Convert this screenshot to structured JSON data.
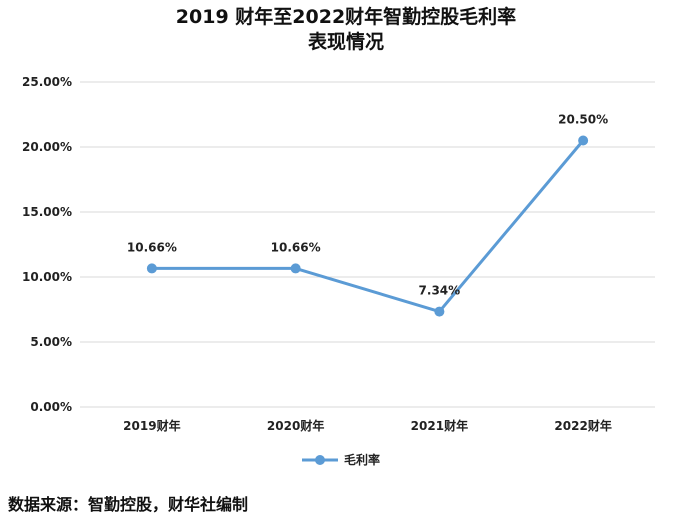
{
  "title_lines": [
    "2019 财年至2022财年智勤控股毛利率",
    "表现情况"
  ],
  "source": "数据来源：智勤控股，财华社编制",
  "chart_data": {
    "type": "line",
    "title": "2019 财年至2022财年智勤控股毛利率表现情况",
    "categories": [
      "2019财年",
      "2020财年",
      "2021财年",
      "2022财年"
    ],
    "series": [
      {
        "name": "毛利率",
        "values": [
          10.66,
          10.66,
          7.34,
          20.5
        ],
        "labels": [
          "10.66%",
          "10.66%",
          "7.34%",
          "20.50%"
        ],
        "color": "#5b9bd5"
      }
    ],
    "yticks": [
      "0.00%",
      "5.00%",
      "10.00%",
      "15.00%",
      "20.00%",
      "25.00%"
    ],
    "ylim": [
      0,
      25
    ],
    "grid": true,
    "legend": "bottom"
  }
}
